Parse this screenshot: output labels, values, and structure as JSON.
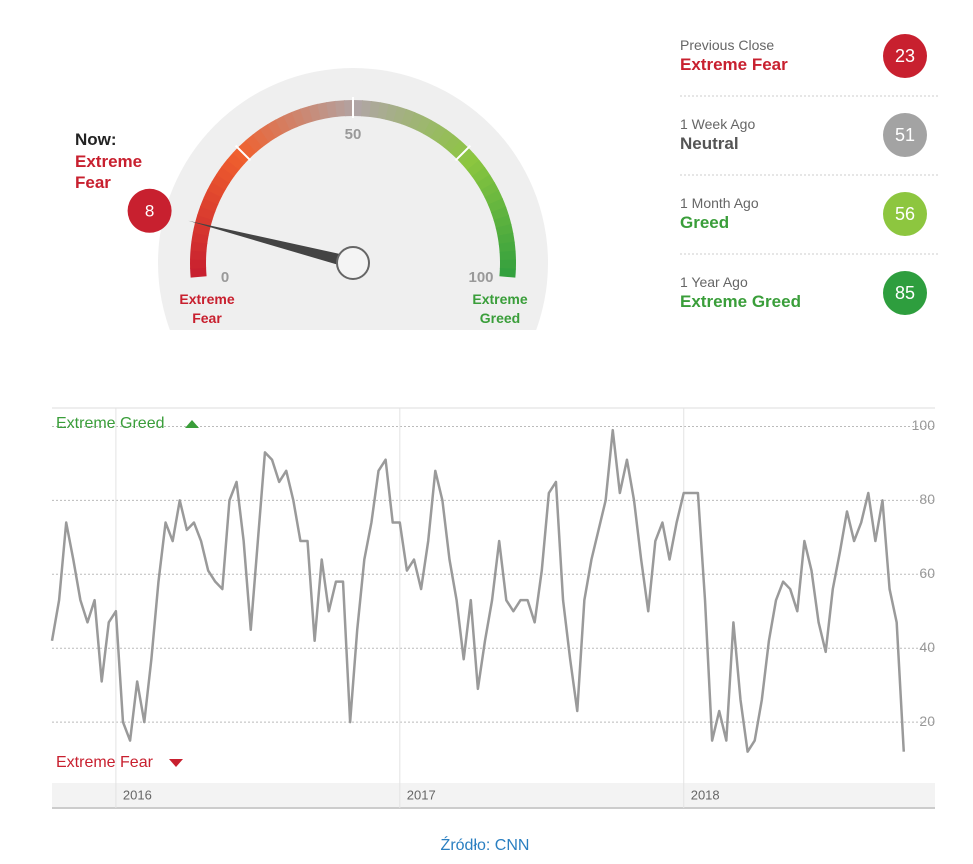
{
  "chart_data": [
    {
      "type": "gauge",
      "now_label": "Now:",
      "status": "Extreme Fear",
      "value": 8,
      "ylim": [
        0,
        100
      ],
      "yticks": [
        0,
        50,
        100
      ],
      "min_label": "Extreme Fear",
      "max_label": "Extreme Greed",
      "color": "#c8202f"
    },
    {
      "type": "line",
      "color": "#9a9a9a",
      "grid": true,
      "categories": [
        null,
        null,
        null,
        null,
        null,
        null,
        null,
        null,
        null,
        "2016",
        null,
        null,
        null,
        null,
        null,
        null,
        null,
        null,
        null,
        null,
        null,
        null,
        null,
        null,
        null,
        null,
        null,
        null,
        null,
        null,
        null,
        null,
        null,
        null,
        null,
        null,
        null,
        null,
        null,
        null,
        null,
        null,
        null,
        null,
        null,
        null,
        null,
        null,
        null,
        "2017",
        null,
        null,
        null,
        null,
        null,
        null,
        null,
        null,
        null,
        null,
        null,
        null,
        null,
        null,
        null,
        null,
        null,
        null,
        null,
        null,
        null,
        null,
        null,
        null,
        null,
        null,
        null,
        null,
        null,
        null,
        null,
        null,
        null,
        null,
        null,
        null,
        null,
        null,
        null,
        "2018",
        null,
        null,
        null,
        null,
        null,
        null,
        null,
        null,
        null,
        null,
        null,
        null,
        null,
        null,
        null,
        null,
        null,
        null,
        null,
        null,
        null,
        null,
        null,
        null,
        null,
        null,
        null,
        null,
        null,
        null,
        null
      ],
      "values": [
        42,
        53,
        74,
        64,
        53,
        47,
        53,
        31,
        47,
        50,
        20,
        15,
        31,
        20,
        37,
        58,
        74,
        69,
        80,
        72,
        74,
        69,
        61,
        58,
        56,
        80,
        85,
        69,
        45,
        69,
        93,
        91,
        85,
        88,
        80,
        69,
        69,
        42,
        64,
        50,
        58,
        58,
        20,
        45,
        64,
        74,
        88,
        91,
        74,
        74,
        61,
        64,
        56,
        69,
        88,
        80,
        64,
        53,
        37,
        53,
        29,
        42,
        53,
        69,
        53,
        50,
        53,
        53,
        47,
        61,
        82,
        85,
        53,
        37,
        23,
        53,
        64,
        72,
        80,
        99,
        82,
        91,
        80,
        64,
        50,
        69,
        74,
        64,
        74,
        82,
        82,
        82,
        53,
        15,
        23,
        15,
        47,
        26,
        12,
        15,
        26,
        42,
        53,
        58,
        56,
        50,
        69,
        61,
        47,
        39,
        56,
        66,
        77,
        69,
        74,
        82,
        69,
        80,
        56,
        47,
        12
      ],
      "ylim": [
        0,
        105
      ],
      "yticks": [
        20,
        40,
        60,
        80,
        100
      ],
      "annotations": [
        "Extreme Greed",
        "Extreme Fear"
      ]
    }
  ],
  "history": [
    {
      "label": "Previous Close",
      "status": "Extreme Fear",
      "value": 23,
      "status_color": "#c8202f",
      "color": "#c8202f"
    },
    {
      "label": "1 Week Ago",
      "status": "Neutral",
      "value": 51,
      "status_color": "#555555",
      "color": "#a3a3a3"
    },
    {
      "label": "1 Month Ago",
      "status": "Greed",
      "value": 56,
      "status_color": "#3a9e3a",
      "color": "#8dc63f"
    },
    {
      "label": "1 Year Ago",
      "status": "Extreme Greed",
      "value": 85,
      "status_color": "#3a9e3a",
      "color": "#2e9e3e"
    }
  ],
  "source": "Źródło: CNN"
}
